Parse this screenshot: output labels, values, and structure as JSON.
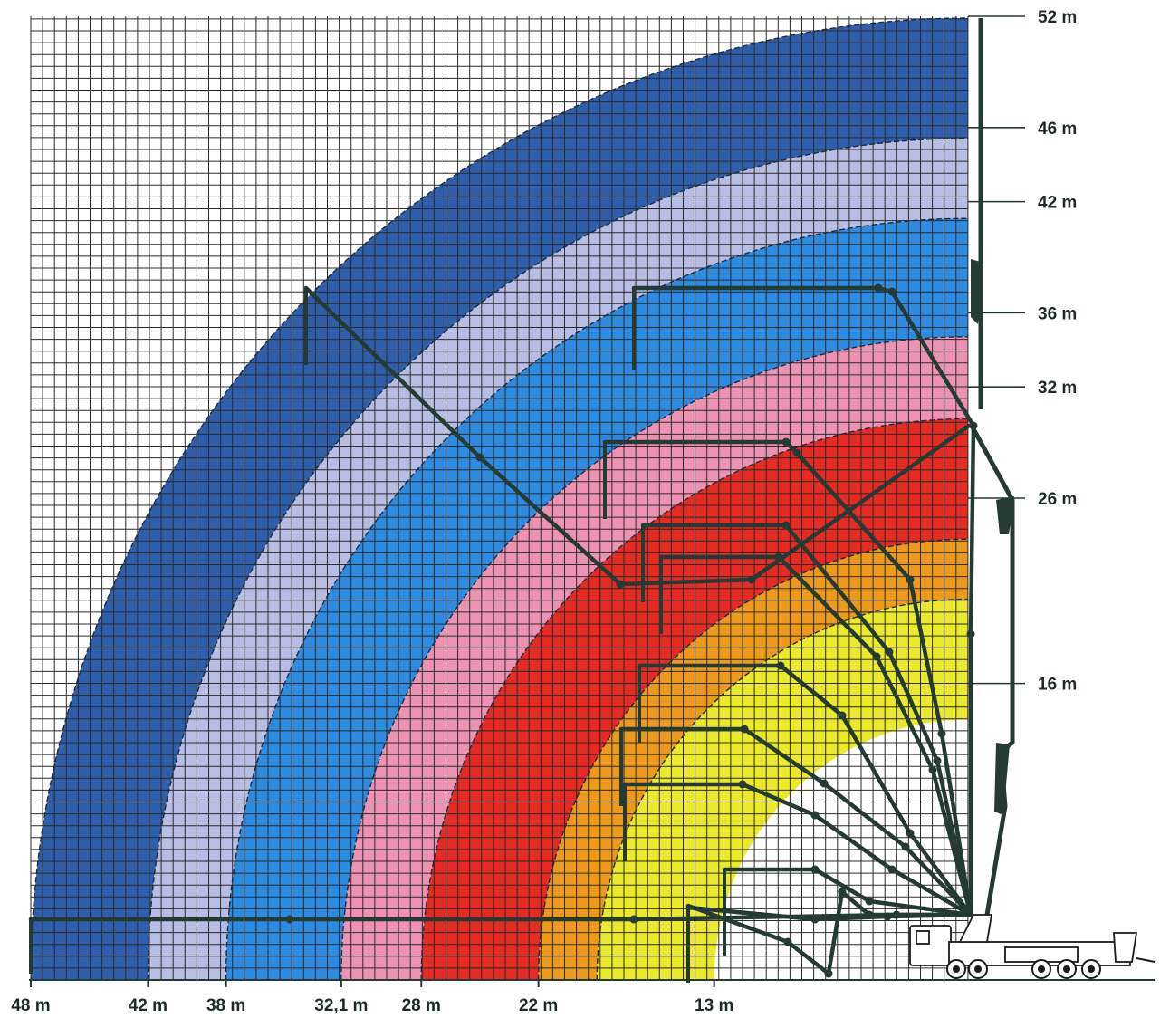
{
  "chart_data": {
    "type": "reach-diagram",
    "x_axis_labels": [
      "48 m",
      "42 m",
      "38 m",
      "32,1 m",
      "28 m",
      "22 m",
      "13 m"
    ],
    "height_labels": [
      "52 m",
      "46 m",
      "42 m",
      "36 m",
      "32 m",
      "26 m",
      "16 m"
    ],
    "reach_zones": [
      {
        "inner_reach_m": 42,
        "outer_reach_m": 48,
        "color": "#2f5eab"
      },
      {
        "inner_reach_m": 38,
        "outer_reach_m": 42,
        "color": "#b8bde3"
      },
      {
        "inner_reach_m": 32.1,
        "outer_reach_m": 38,
        "color": "#2f8be0"
      },
      {
        "inner_reach_m": 28,
        "outer_reach_m": 32.1,
        "color": "#ec93b4"
      },
      {
        "inner_reach_m": 22,
        "outer_reach_m": 28,
        "color": "#e42b24"
      },
      {
        "inner_reach_m": 19,
        "outer_reach_m": 22,
        "color": "#ec9a1c"
      },
      {
        "inner_reach_m": 13,
        "outer_reach_m": 19,
        "color": "#eae92c"
      }
    ],
    "grid": true,
    "boom_color": "#253a33",
    "label_color": "#1d2b28"
  }
}
